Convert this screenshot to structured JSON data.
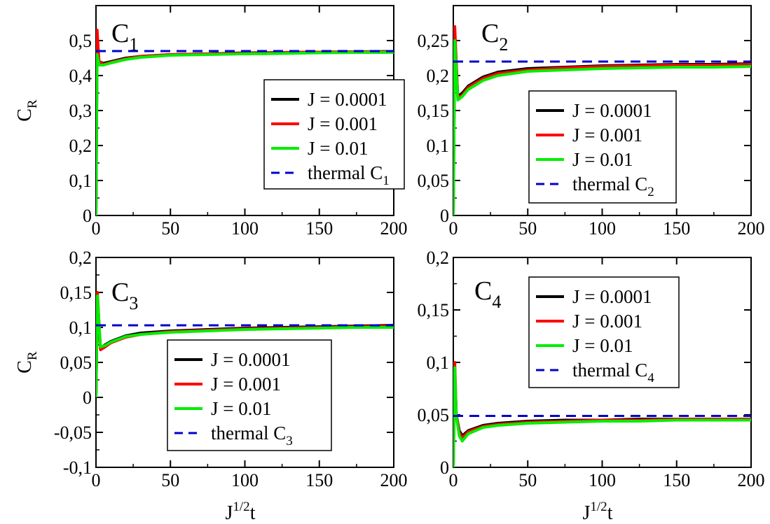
{
  "chart_data": [
    {
      "type": "line",
      "panel_label": "C",
      "panel_label_sub": "1",
      "xlabel": "",
      "ylabel_main": "C",
      "ylabel_sub": "R",
      "xlim": [
        0,
        200
      ],
      "ylim": [
        0,
        0.6
      ],
      "xticks": [
        0,
        50,
        100,
        150,
        200
      ],
      "xtick_labels": [
        "0",
        "50",
        "100",
        "150",
        "200"
      ],
      "yticks": [
        0,
        0.1,
        0.2,
        0.3,
        0.4,
        0.5
      ],
      "ytick_labels": [
        "0",
        "0,1",
        "0,2",
        "0,3",
        "0,4",
        "0,5"
      ],
      "thermal": 0.47,
      "legend_position": "center-right",
      "series": [
        {
          "name": "J = 0.0001",
          "color": "#000000",
          "style": "solid",
          "x": [
            0,
            0.8,
            2,
            5,
            10,
            20,
            30,
            50,
            75,
            100,
            125,
            150,
            175,
            200
          ],
          "y": [
            0.0,
            0.5,
            0.44,
            0.435,
            0.44,
            0.45,
            0.455,
            0.46,
            0.462,
            0.465,
            0.466,
            0.467,
            0.468,
            0.469
          ]
        },
        {
          "name": "J = 0.001",
          "color": "#ff0000",
          "style": "solid",
          "x": [
            0,
            0.8,
            2,
            5,
            10,
            20,
            30,
            50,
            75,
            100,
            125,
            150,
            175,
            200
          ],
          "y": [
            0.0,
            0.53,
            0.44,
            0.432,
            0.438,
            0.448,
            0.455,
            0.46,
            0.462,
            0.464,
            0.466,
            0.467,
            0.468,
            0.468
          ]
        },
        {
          "name": "J = 0.01",
          "color": "#00ee00",
          "style": "solid",
          "x": [
            0,
            0.8,
            2,
            5,
            10,
            20,
            30,
            50,
            75,
            100,
            125,
            150,
            175,
            200
          ],
          "y": [
            0.0,
            0.46,
            0.43,
            0.43,
            0.436,
            0.446,
            0.452,
            0.458,
            0.46,
            0.462,
            0.463,
            0.465,
            0.466,
            0.466
          ]
        },
        {
          "name": "thermal C",
          "name_sub": "1",
          "color": "#0000cc",
          "style": "dashed",
          "x": [
            0,
            200
          ],
          "y": [
            0.47,
            0.47
          ]
        }
      ]
    },
    {
      "type": "line",
      "panel_label": "C",
      "panel_label_sub": "2",
      "xlabel": "",
      "ylabel_main": "",
      "ylabel_sub": "",
      "xlim": [
        0,
        200
      ],
      "ylim": [
        0,
        0.3
      ],
      "xticks": [
        0,
        50,
        100,
        150,
        200
      ],
      "xtick_labels": [
        "0",
        "50",
        "100",
        "150",
        "200"
      ],
      "yticks": [
        0,
        0.05,
        0.1,
        0.15,
        0.2,
        0.25
      ],
      "ytick_labels": [
        "0",
        "0,05",
        "0,1",
        "0,15",
        "0,2",
        "0,25"
      ],
      "thermal": 0.22,
      "legend_position": "center-right",
      "series": [
        {
          "name": "J = 0.0001",
          "color": "#000000",
          "style": "solid",
          "x": [
            0,
            1,
            3,
            6,
            10,
            20,
            30,
            50,
            75,
            100,
            125,
            150,
            175,
            200
          ],
          "y": [
            0.0,
            0.26,
            0.17,
            0.175,
            0.185,
            0.198,
            0.205,
            0.21,
            0.212,
            0.214,
            0.215,
            0.216,
            0.216,
            0.217
          ]
        },
        {
          "name": "J = 0.001",
          "color": "#ff0000",
          "style": "solid",
          "x": [
            0,
            1,
            3,
            6,
            10,
            20,
            30,
            50,
            75,
            100,
            125,
            150,
            175,
            200
          ],
          "y": [
            0.0,
            0.27,
            0.168,
            0.172,
            0.183,
            0.196,
            0.203,
            0.208,
            0.211,
            0.213,
            0.214,
            0.215,
            0.215,
            0.216
          ]
        },
        {
          "name": "J = 0.01",
          "color": "#00ee00",
          "style": "solid",
          "x": [
            0,
            1,
            3,
            6,
            10,
            20,
            30,
            50,
            75,
            100,
            125,
            150,
            175,
            200
          ],
          "y": [
            0.0,
            0.25,
            0.165,
            0.17,
            0.18,
            0.193,
            0.2,
            0.206,
            0.208,
            0.21,
            0.211,
            0.212,
            0.212,
            0.213
          ]
        },
        {
          "name": "thermal C",
          "name_sub": "2",
          "color": "#0000cc",
          "style": "dashed",
          "x": [
            0,
            200
          ],
          "y": [
            0.22,
            0.22
          ]
        }
      ]
    },
    {
      "type": "line",
      "panel_label": "C",
      "panel_label_sub": "3",
      "xlabel_main": "J",
      "xlabel_sup": "1/2",
      "xlabel_tail": "t",
      "ylabel_main": "C",
      "ylabel_sub": "R",
      "xlim": [
        0,
        200
      ],
      "ylim": [
        -0.1,
        0.2
      ],
      "xticks": [
        0,
        50,
        100,
        150,
        200
      ],
      "xtick_labels": [
        "0",
        "50",
        "100",
        "150",
        "200"
      ],
      "yticks": [
        -0.1,
        -0.05,
        0,
        0.05,
        0.1,
        0.15,
        0.2
      ],
      "ytick_labels": [
        "-0,1",
        "-0,05",
        "0",
        "0,05",
        "0,1",
        "0,15",
        "0,2"
      ],
      "thermal": 0.103,
      "legend_position": "lower-right",
      "series": [
        {
          "name": "J = 0.0001",
          "color": "#000000",
          "style": "solid",
          "x": [
            0,
            1,
            3,
            6,
            10,
            20,
            30,
            50,
            75,
            100,
            125,
            150,
            175,
            200
          ],
          "y": [
            0.0,
            0.14,
            0.07,
            0.075,
            0.08,
            0.088,
            0.092,
            0.095,
            0.097,
            0.099,
            0.1,
            0.101,
            0.102,
            0.103
          ]
        },
        {
          "name": "J = 0.001",
          "color": "#ff0000",
          "style": "solid",
          "x": [
            0,
            1,
            3,
            6,
            10,
            20,
            30,
            50,
            75,
            100,
            125,
            150,
            175,
            200
          ],
          "y": [
            0.0,
            0.15,
            0.068,
            0.072,
            0.078,
            0.086,
            0.09,
            0.094,
            0.096,
            0.098,
            0.099,
            0.1,
            0.101,
            0.102
          ]
        },
        {
          "name": "J = 0.01",
          "color": "#00ee00",
          "style": "solid",
          "x": [
            0,
            1,
            3,
            6,
            10,
            20,
            30,
            50,
            75,
            100,
            125,
            150,
            175,
            200
          ],
          "y": [
            0.0,
            0.145,
            0.072,
            0.074,
            0.079,
            0.087,
            0.09,
            0.093,
            0.095,
            0.097,
            0.098,
            0.099,
            0.1,
            0.1
          ]
        },
        {
          "name": "thermal C",
          "name_sub": "3",
          "color": "#0000cc",
          "style": "dashed",
          "x": [
            0,
            200
          ],
          "y": [
            0.103,
            0.103
          ]
        }
      ]
    },
    {
      "type": "line",
      "panel_label": "C",
      "panel_label_sub": "4",
      "xlabel_main": "J",
      "xlabel_sup": "1/2",
      "xlabel_tail": "t",
      "ylabel_main": "",
      "ylabel_sub": "",
      "xlim": [
        0,
        200
      ],
      "ylim": [
        0,
        0.2
      ],
      "xticks": [
        0,
        50,
        100,
        150,
        200
      ],
      "xtick_labels": [
        "0",
        "50",
        "100",
        "150",
        "200"
      ],
      "yticks": [
        0,
        0.05,
        0.1,
        0.15,
        0.2
      ],
      "ytick_labels": [
        "0",
        "0,05",
        "0,1",
        "0,15",
        "0,2"
      ],
      "thermal": 0.049,
      "legend_position": "top-right",
      "series": [
        {
          "name": "J = 0.0001",
          "color": "#000000",
          "style": "solid",
          "x": [
            0,
            1,
            2,
            4,
            6,
            10,
            20,
            30,
            50,
            75,
            100,
            125,
            150,
            175,
            200
          ],
          "y": [
            0.0,
            0.09,
            0.05,
            0.035,
            0.03,
            0.035,
            0.04,
            0.042,
            0.044,
            0.045,
            0.045,
            0.046,
            0.046,
            0.046,
            0.046
          ]
        },
        {
          "name": "J = 0.001",
          "color": "#ff0000",
          "style": "solid",
          "x": [
            0,
            1,
            2,
            4,
            6,
            10,
            20,
            30,
            50,
            75,
            100,
            125,
            150,
            175,
            200
          ],
          "y": [
            0.0,
            0.1,
            0.05,
            0.033,
            0.028,
            0.034,
            0.039,
            0.041,
            0.043,
            0.044,
            0.045,
            0.045,
            0.046,
            0.046,
            0.046
          ]
        },
        {
          "name": "J = 0.01",
          "color": "#00ee00",
          "style": "solid",
          "x": [
            0,
            1,
            2,
            4,
            6,
            10,
            20,
            30,
            50,
            75,
            100,
            125,
            150,
            175,
            200
          ],
          "y": [
            0.0,
            0.095,
            0.048,
            0.03,
            0.025,
            0.032,
            0.038,
            0.04,
            0.042,
            0.043,
            0.044,
            0.044,
            0.045,
            0.045,
            0.045
          ]
        },
        {
          "name": "thermal C",
          "name_sub": "4",
          "color": "#0000cc",
          "style": "dashed",
          "x": [
            0,
            200
          ],
          "y": [
            0.049,
            0.049
          ]
        }
      ]
    }
  ]
}
